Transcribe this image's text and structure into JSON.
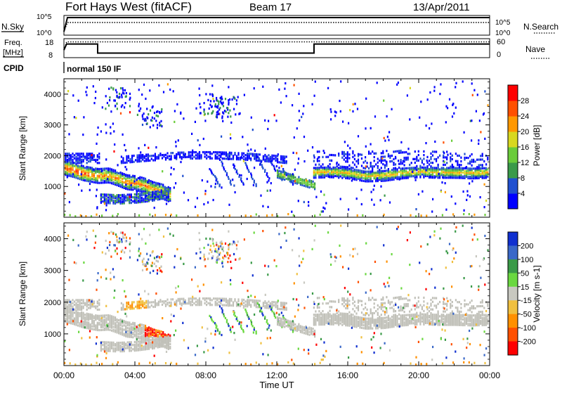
{
  "header": {
    "station": "Fort Hays West (fitACF)",
    "beam": "Beam 17",
    "date": "13/Apr/2011"
  },
  "left_labels": {
    "nsky": "N.Sky",
    "freq": "Freq.",
    "freq_unit": "[MHz]",
    "cpid": "CPID"
  },
  "right_labels": {
    "nsearch": "N.Search",
    "nave": "Nave"
  },
  "cpid_value": "normal 150 IF",
  "time_axis": {
    "ticks": [
      "00:00",
      "04:00",
      "08:00",
      "12:00",
      "16:00",
      "20:00",
      "00:00"
    ],
    "label": "Time UT"
  },
  "colors": {
    "power": [
      "#0000ff",
      "#2050d0",
      "#3a9a4a",
      "#6acc3a",
      "#d8d820",
      "#ff9800",
      "#ff5000",
      "#ff0000"
    ],
    "velocity": [
      "#1030d0",
      "#3a68c8",
      "#3a9a48",
      "#6ad840",
      "#c8c8c0",
      "#f0c040",
      "#ff9000",
      "#ff5000",
      "#ff0000"
    ],
    "ground_scatter": "#c0c0b8"
  },
  "chart_data": [
    {
      "type": "line",
      "title": "N.Sky / N.Search",
      "y_ticks_left": [
        "10^5",
        "10^0"
      ],
      "y_ticks_right": [
        "10^5",
        "10^0"
      ],
      "x_range_hours": [
        0,
        24
      ],
      "series": [
        {
          "x": [
            0,
            0.2,
            24
          ],
          "values": [
            1,
            5,
            5
          ],
          "style": "solid"
        },
        {
          "x": [
            0,
            0.2,
            24
          ],
          "values": [
            1,
            3.6,
            3.6
          ],
          "style": "dotted"
        }
      ]
    },
    {
      "type": "line",
      "title": "Freq. / Nave",
      "y_ticks_left": [
        "18",
        "8"
      ],
      "y_ticks_right": [
        "60",
        "0"
      ],
      "x_range_hours": [
        0,
        24
      ],
      "series": [
        {
          "x": [
            0,
            0.15,
            1.9,
            1.9,
            14.1,
            14.1,
            24
          ],
          "values": [
            12,
            15.2,
            15.2,
            10.4,
            10.4,
            15.2,
            15.2
          ],
          "style": "solid"
        },
        {
          "x": [
            0,
            0.15,
            24
          ],
          "values": [
            12,
            16.3,
            16.3
          ],
          "style": "dotted"
        }
      ]
    },
    {
      "type": "heatmap",
      "title": "Power",
      "ylabel": "Slant Range [km]",
      "ylim": [
        0,
        4500
      ],
      "y_ticks": [
        1000,
        2000,
        3000,
        4000
      ],
      "x_range_hours": [
        0,
        24
      ],
      "colorbar": {
        "label": "Power [dB]",
        "ticks": [
          4,
          8,
          12,
          16,
          20,
          24,
          28
        ],
        "range": [
          0,
          32
        ]
      },
      "bands": [
        {
          "t": [
            0,
            0.5,
            1,
            1.5,
            1.9,
            2.5,
            3,
            3.5,
            4,
            4.5,
            5,
            5.5,
            6
          ],
          "r": [
            1650,
            1580,
            1480,
            1420,
            1380,
            1400,
            1300,
            1180,
            1150,
            1080,
            950,
            880,
            750
          ],
          "w": 230
        },
        {
          "t": [
            2,
            3,
            4,
            5,
            5.8
          ],
          "r": [
            650,
            620,
            650,
            720,
            820
          ],
          "w": 140
        },
        {
          "t": [
            14,
            15,
            16,
            17,
            18,
            19,
            20,
            21,
            22,
            23,
            24
          ],
          "r": [
            1500,
            1520,
            1480,
            1380,
            1400,
            1480,
            1520,
            1500,
            1500,
            1480,
            1500
          ],
          "w": 180
        }
      ]
    },
    {
      "type": "heatmap",
      "title": "Velocity",
      "ylabel": "Slant Range [km]",
      "ylim": [
        0,
        4500
      ],
      "y_ticks": [
        1000,
        2000,
        3000,
        4000
      ],
      "x_range_hours": [
        0,
        24
      ],
      "colorbar": {
        "label": "Velocity [m s-1]",
        "ticks": [
          200,
          100,
          50,
          15,
          -15,
          -50,
          -100,
          -200
        ]
      },
      "features": [
        {
          "t": [
            4.5,
            5.9
          ],
          "r": [
            900,
            1500
          ],
          "velocity": -200
        }
      ]
    }
  ]
}
